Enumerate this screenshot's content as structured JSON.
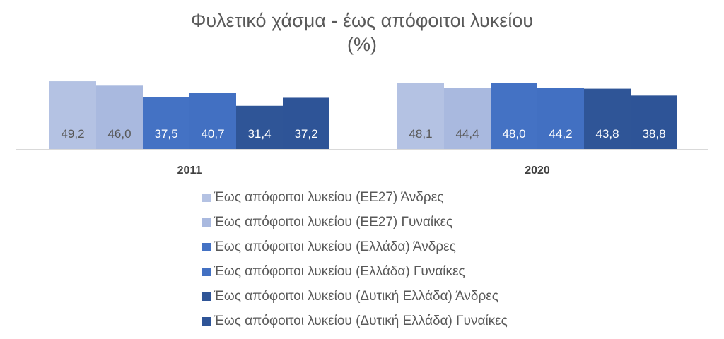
{
  "chart_data": {
    "type": "bar",
    "title_lines": [
      "Φυλετικό χάσμα - έως απόφοιτοι λυκείου",
      "(%)"
    ],
    "xlabel": "",
    "ylabel": "",
    "ylim": [
      0,
      50
    ],
    "grid": false,
    "legend_position": "bottom",
    "categories": [
      "2011",
      "2020"
    ],
    "series": [
      {
        "name": "Έως απόφοιτοι λυκείου (ΕΕ27) Άνδρες",
        "color": "#b4c2e3",
        "labels": [
          "49,2",
          "48,1"
        ],
        "values": [
          49.2,
          48.1
        ]
      },
      {
        "name": "Έως απόφοιτοι λυκείου (ΕΕ27) Γυναίκες",
        "color": "#a9b9df",
        "labels": [
          "46,0",
          "44,4"
        ],
        "values": [
          46.0,
          44.4
        ]
      },
      {
        "name": "Έως απόφοιτοι λυκείου (Ελλάδα) Άνδρες",
        "color": "#4472c4",
        "labels": [
          "37,5",
          "48,0"
        ],
        "values": [
          37.5,
          48.0
        ]
      },
      {
        "name": "Έως απόφοιτοι λυκείου (Ελλάδα) Γυναίκες",
        "color": "#4270c2",
        "labels": [
          "40,7",
          "44,2"
        ],
        "values": [
          40.7,
          44.2
        ]
      },
      {
        "name": "Έως απόφοιτοι λυκείου (Δυτική Ελλάδα) Άνδρες",
        "color": "#2f5597",
        "labels": [
          "31,4",
          "43,8"
        ],
        "values": [
          31.4,
          43.8
        ]
      },
      {
        "name": "Έως απόφοιτοι λυκείου (Δυτική Ελλάδα) Γυναίκες",
        "color": "#2e5497",
        "labels": [
          "37,2",
          "38,8"
        ],
        "values": [
          37.2,
          38.8
        ]
      }
    ],
    "label_color_light": "#595959",
    "label_color_dark": "#ffffff"
  }
}
